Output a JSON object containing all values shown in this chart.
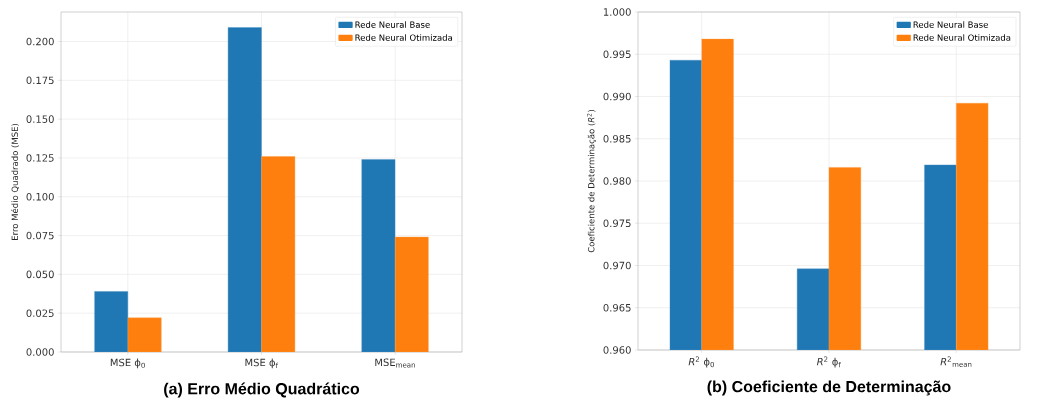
{
  "chart_data": [
    {
      "type": "bar",
      "title": "(a) Erro Médio Quadrático",
      "ylabel": "Erro Médio Quadrado (MSE)",
      "categories": [
        "MSE ϕ$_{0}$",
        "MSE ϕ$_{f}$",
        "MSE$_{mean}$"
      ],
      "series": [
        {
          "name": "Rede Neural Base",
          "color": "#1f77b4",
          "values": [
            0.039,
            0.209,
            0.124
          ]
        },
        {
          "name": "Rede Neural Otimizada",
          "color": "#ff7f0e",
          "values": [
            0.022,
            0.126,
            0.074
          ]
        }
      ],
      "ylim": [
        0,
        0.219
      ],
      "yticks": [
        {
          "value": 0,
          "label": "0.000"
        },
        {
          "value": 0.025,
          "label": "0.025"
        },
        {
          "value": 0.05,
          "label": "0.050"
        },
        {
          "value": 0.075,
          "label": "0.075"
        },
        {
          "value": 0.1,
          "label": "0.100"
        },
        {
          "value": 0.125,
          "label": "0.125"
        },
        {
          "value": 0.15,
          "label": "0.150"
        },
        {
          "value": 0.175,
          "label": "0.175"
        },
        {
          "value": 0.2,
          "label": "0.200"
        }
      ],
      "grid": true,
      "legend": "top right"
    },
    {
      "type": "bar",
      "title": "(b) Coeficiente de Determinação",
      "ylabel": "Coeficiente de Determinação (*R*$^{2}$)",
      "categories": [
        "*R*$^{2}$ ϕ$_{0}$",
        "*R*$^{2}$ ϕ$_{f}$",
        "*R*$^{2}$$_{mean}$"
      ],
      "series": [
        {
          "name": "Rede Neural Base",
          "color": "#1f77b4",
          "values": [
            0.9943,
            0.9696,
            0.9819
          ]
        },
        {
          "name": "Rede Neural Otimizada",
          "color": "#ff7f0e",
          "values": [
            0.9968,
            0.9816,
            0.9892
          ]
        }
      ],
      "ylim": [
        0.96,
        1.0
      ],
      "yticks": [
        {
          "value": 0.96,
          "label": "0.960"
        },
        {
          "value": 0.965,
          "label": "0.965"
        },
        {
          "value": 0.97,
          "label": "0.970"
        },
        {
          "value": 0.975,
          "label": "0.975"
        },
        {
          "value": 0.98,
          "label": "0.980"
        },
        {
          "value": 0.985,
          "label": "0.985"
        },
        {
          "value": 0.99,
          "label": "0.990"
        },
        {
          "value": 0.995,
          "label": "0.995"
        },
        {
          "value": 1.0,
          "label": "1.000"
        }
      ],
      "grid": true,
      "legend": "top right"
    }
  ]
}
